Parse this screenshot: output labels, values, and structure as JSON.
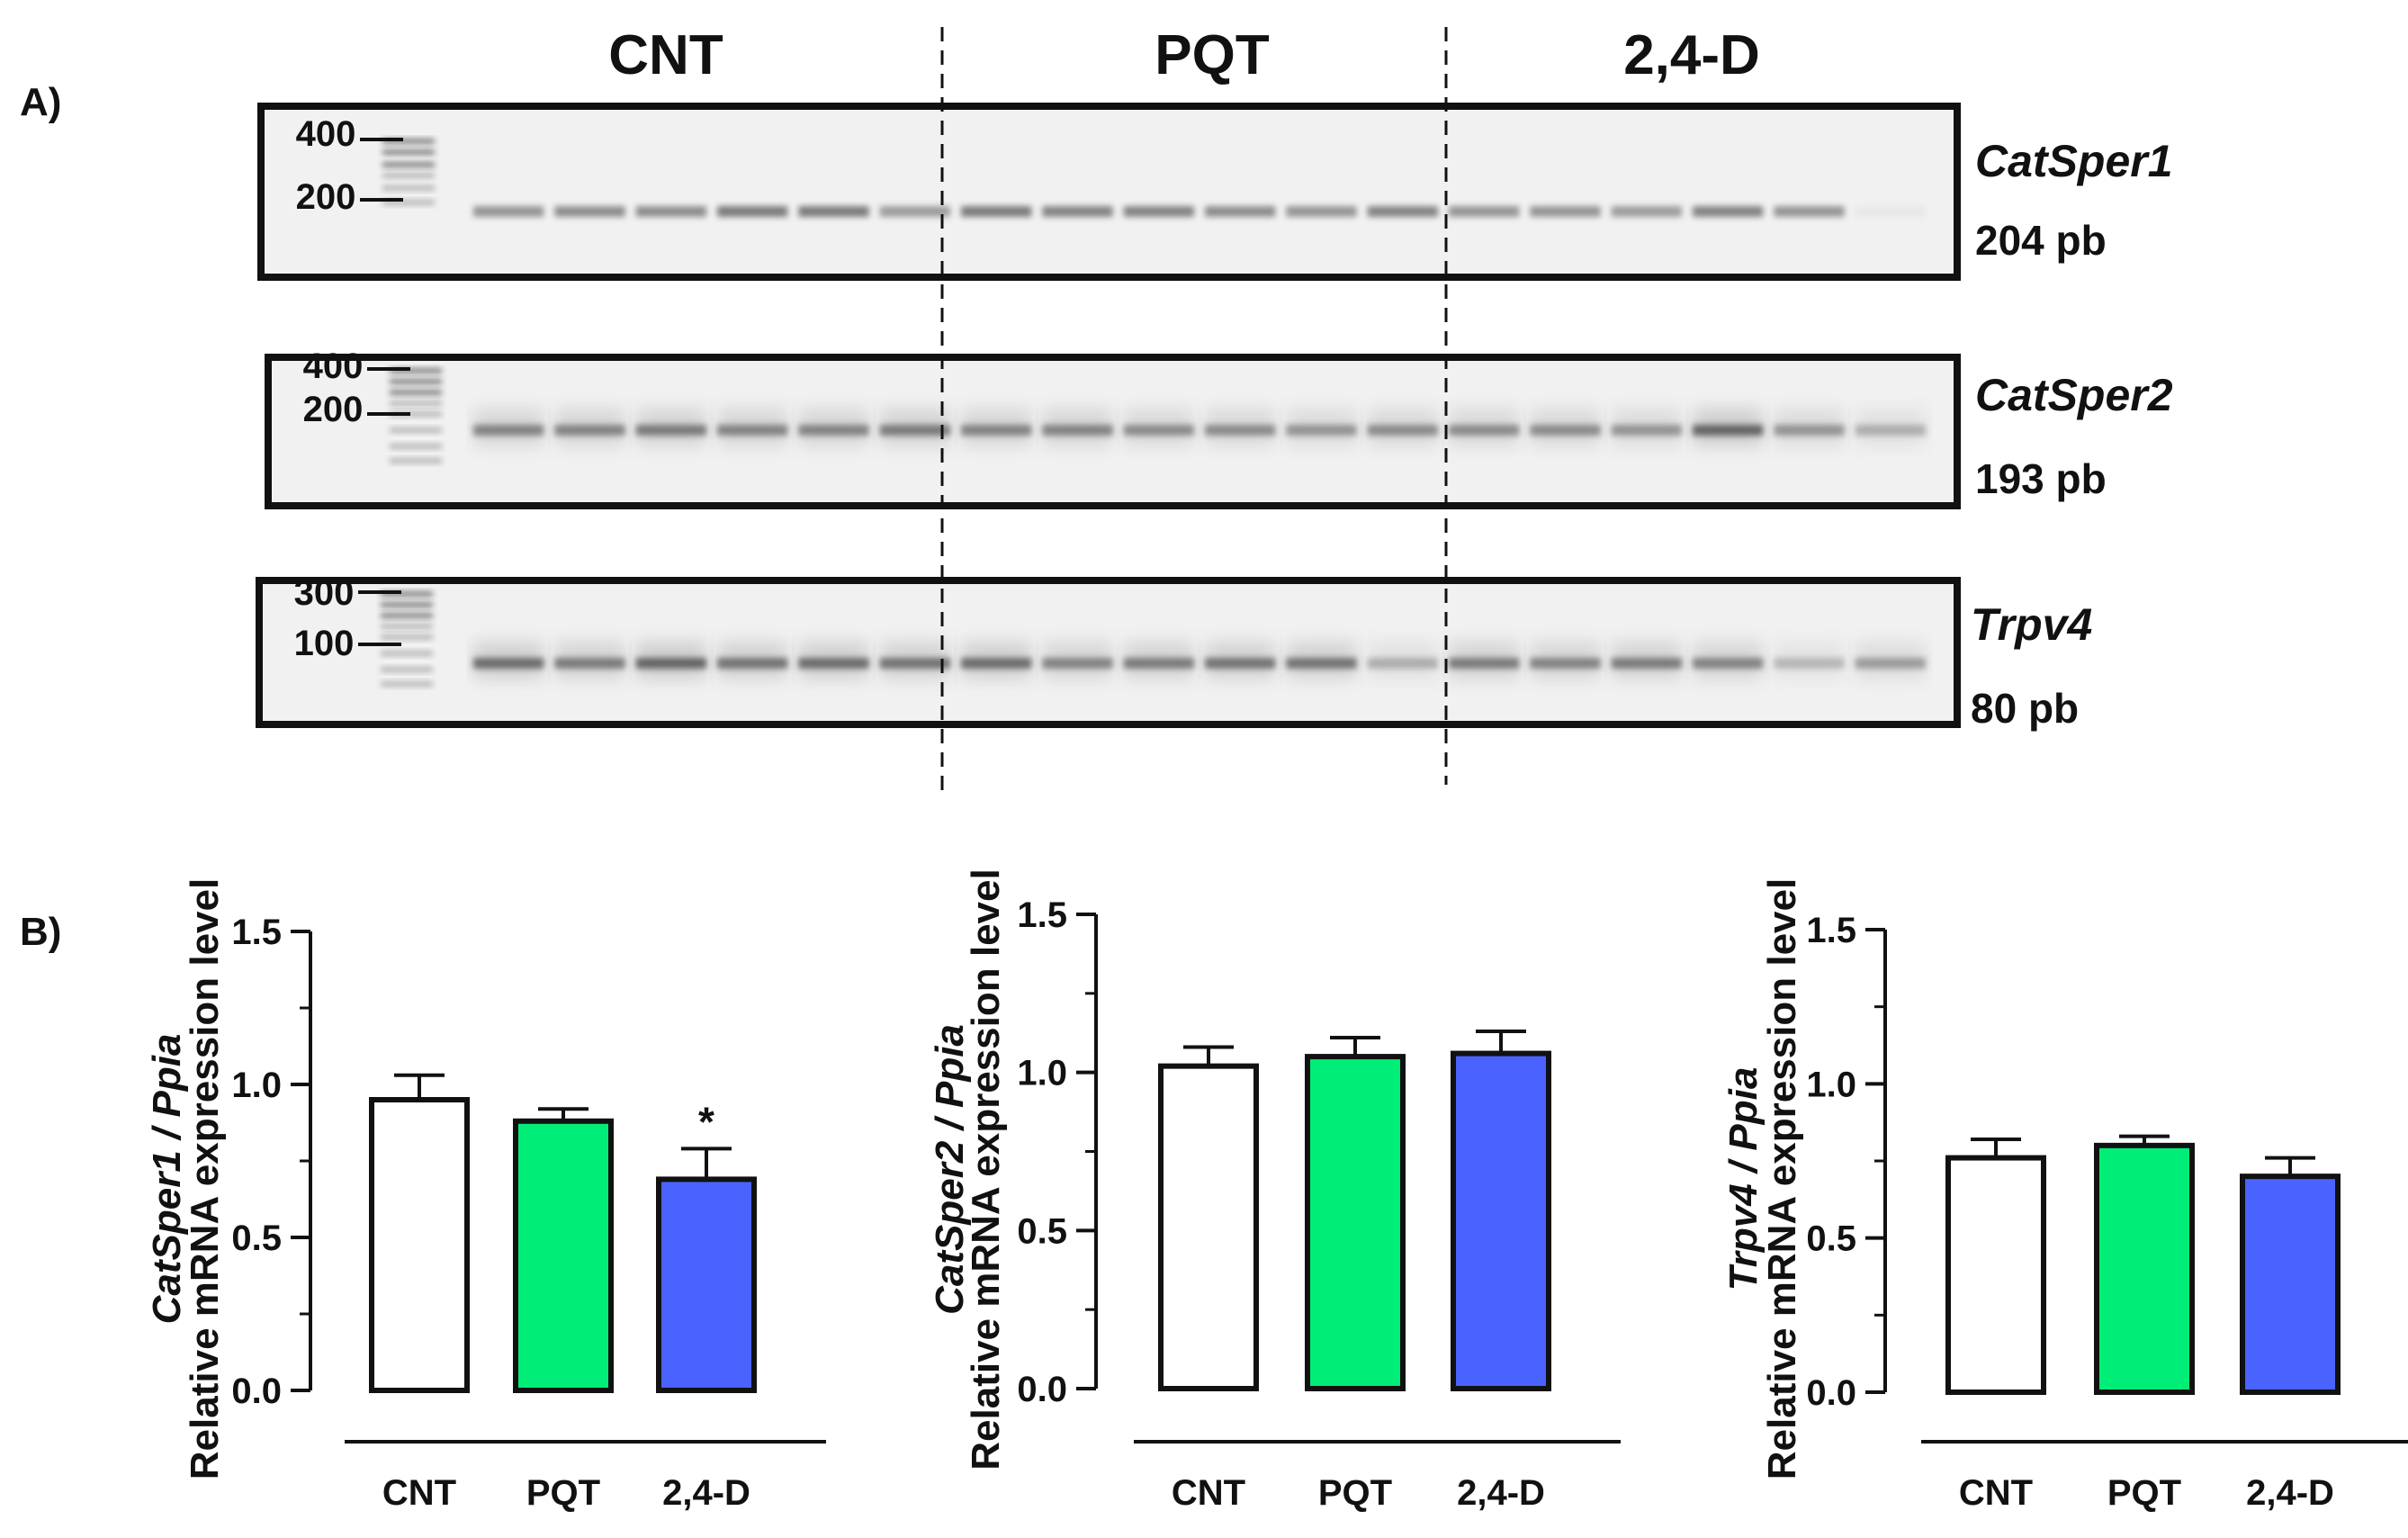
{
  "panel_labels": {
    "a": "A)",
    "b": "B)"
  },
  "gel": {
    "group_labels": [
      "CNT",
      "PQT",
      "2,4-D"
    ],
    "lanes_per_group": 6,
    "rows": [
      {
        "gene": "CatSper1",
        "size_label": "204 pb",
        "ladder_labels": [
          "400",
          "200"
        ],
        "intensity": [
          0.55,
          0.6,
          0.6,
          0.7,
          0.7,
          0.5,
          0.7,
          0.65,
          0.65,
          0.6,
          0.55,
          0.65,
          0.55,
          0.55,
          0.5,
          0.65,
          0.55,
          0.05
        ]
      },
      {
        "gene": "CatSper2",
        "size_label": "193 pb",
        "ladder_labels": [
          "400",
          "200"
        ],
        "intensity": [
          0.6,
          0.6,
          0.65,
          0.6,
          0.6,
          0.65,
          0.6,
          0.6,
          0.55,
          0.55,
          0.5,
          0.55,
          0.55,
          0.55,
          0.5,
          0.8,
          0.5,
          0.35
        ]
      },
      {
        "gene": "Trpv4",
        "size_label": "80 pb",
        "ladder_labels": [
          "300",
          "100"
        ],
        "intensity": [
          0.75,
          0.65,
          0.8,
          0.7,
          0.75,
          0.7,
          0.75,
          0.6,
          0.65,
          0.7,
          0.7,
          0.35,
          0.65,
          0.6,
          0.65,
          0.6,
          0.3,
          0.45
        ]
      }
    ]
  },
  "chart_data": [
    {
      "type": "bar",
      "gene": "CatSper1",
      "ylabel_gene": "CatSper1 / Ppia",
      "ylabel": "Relative mRNA expression level",
      "categories": [
        "CNT",
        "PQT",
        "2,4-D"
      ],
      "values": [
        0.95,
        0.88,
        0.69
      ],
      "errors": [
        0.08,
        0.04,
        0.1
      ],
      "significance": [
        "",
        "",
        "*"
      ],
      "ylim": [
        0,
        1.5
      ],
      "yticks": [
        "0.0",
        "0.5",
        "1.0",
        "1.5"
      ],
      "colors": [
        "#ffffff",
        "#00ee77",
        "#4a63ff"
      ]
    },
    {
      "type": "bar",
      "gene": "CatSper2",
      "ylabel_gene": "CatSper2 / Ppia",
      "ylabel": "Relative mRNA expression level",
      "categories": [
        "CNT",
        "PQT",
        "2,4-D"
      ],
      "values": [
        1.02,
        1.05,
        1.06
      ],
      "errors": [
        0.06,
        0.06,
        0.07
      ],
      "significance": [
        "",
        "",
        ""
      ],
      "ylim": [
        0,
        1.5
      ],
      "yticks": [
        "0.0",
        "0.5",
        "1.0",
        "1.5"
      ],
      "colors": [
        "#ffffff",
        "#00ee77",
        "#4a63ff"
      ]
    },
    {
      "type": "bar",
      "gene": "Trpv4",
      "ylabel_gene": "Trpv4 / Ppia",
      "ylabel": "Relative mRNA expression level",
      "categories": [
        "CNT",
        "PQT",
        "2,4-D"
      ],
      "values": [
        0.76,
        0.8,
        0.7
      ],
      "errors": [
        0.06,
        0.03,
        0.06
      ],
      "significance": [
        "",
        "",
        ""
      ],
      "ylim": [
        0,
        1.5
      ],
      "yticks": [
        "0.0",
        "0.5",
        "1.0",
        "1.5"
      ],
      "colors": [
        "#ffffff",
        "#00ee77",
        "#4a63ff"
      ]
    }
  ]
}
